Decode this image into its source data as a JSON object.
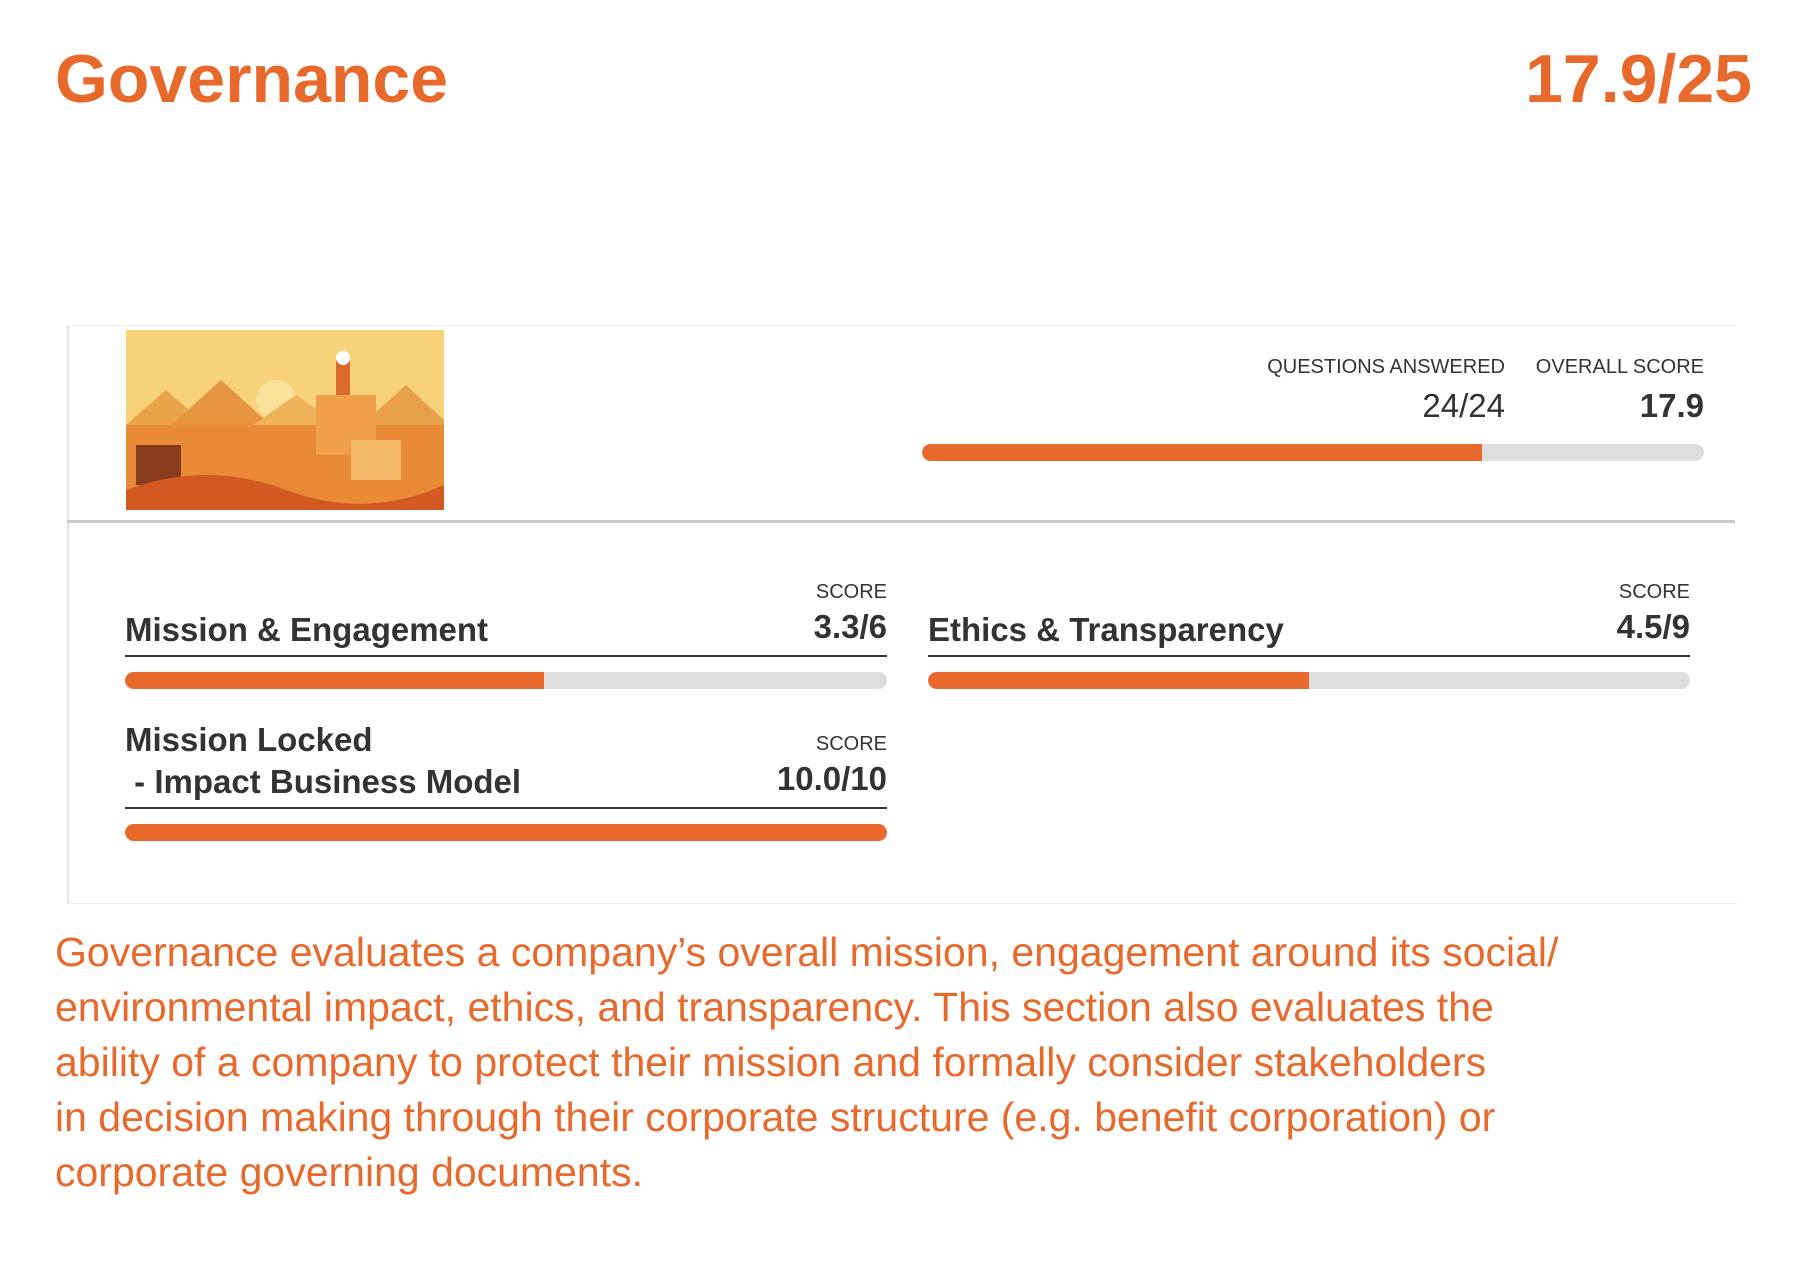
{
  "header": {
    "title": "Governance",
    "score": "17.9/25"
  },
  "card": {
    "questions_label": "QUESTIONS ANSWERED",
    "questions_value": "24/24",
    "overall_label": "OVERALL SCORE",
    "overall_value": "17.9"
  },
  "sections": [
    {
      "title_lines": [
        "Mission & Engagement"
      ],
      "score_label": "SCORE",
      "score": "3.3/6"
    },
    {
      "title_lines": [
        "Ethics & Transparency"
      ],
      "score_label": "SCORE",
      "score": "4.5/9"
    },
    {
      "title_lines": [
        "Mission Locked",
        " - Impact Business Model"
      ],
      "score_label": "SCORE",
      "score": "10.0/10"
    }
  ],
  "paragraph_lines": [
    "Governance evaluates a company’s overall mission, engagement around its social/",
    "environmental impact, ethics, and transparency. This section also evaluates the",
    "ability of a company to protect their mission and formally consider stakeholders",
    "in decision making through their corporate structure (e.g. benefit corporation) or",
    "corporate governing documents."
  ]
}
